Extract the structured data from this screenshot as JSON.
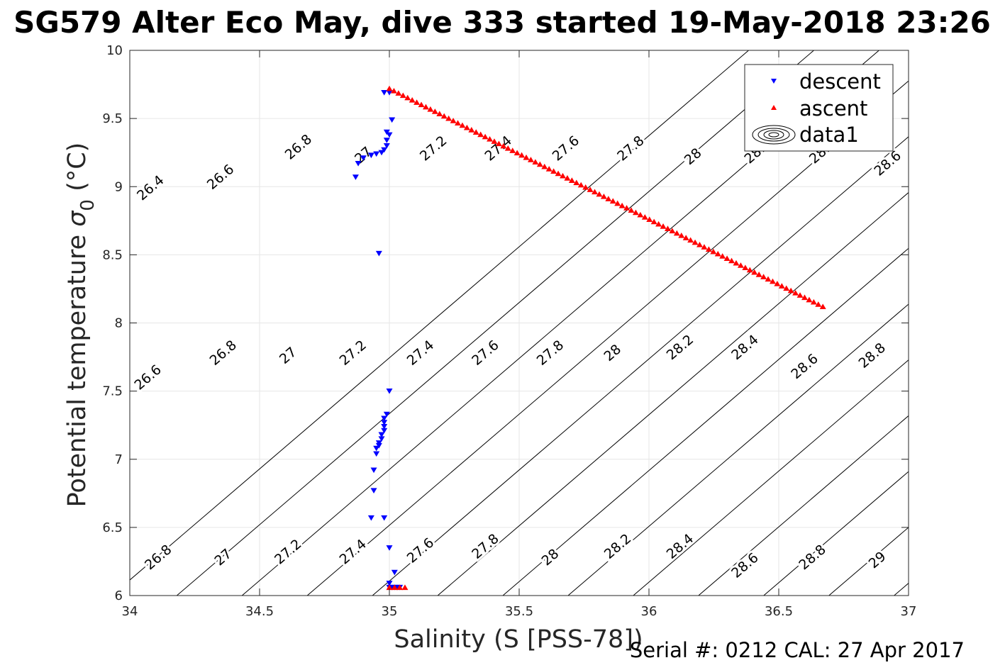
{
  "title": "SG579 Alter Eco May, dive 333 started 19-May-2018 23:26",
  "footer": "Serial #: 0212  CAL: 27 Apr 2017",
  "chart_data": {
    "type": "scatter",
    "xlabel": "Salinity (S [PSS-78])",
    "ylabel_main": "Potential temperature ",
    "ylabel_symbol": "σ",
    "ylabel_sub": "0",
    "ylabel_unit": " (°C)",
    "xlim": [
      34,
      37
    ],
    "ylim": [
      6,
      10
    ],
    "xticks": [
      34,
      34.5,
      35,
      35.5,
      36,
      36.5,
      37
    ],
    "xtick_labels": [
      "34",
      "34.5",
      "35",
      "35.5",
      "36",
      "36.5",
      "37"
    ],
    "yticks": [
      6,
      6.5,
      7,
      7.5,
      8,
      8.5,
      9,
      9.5,
      10
    ],
    "ytick_labels": [
      "6",
      "6.5",
      "7",
      "7.5",
      "8",
      "8.5",
      "9",
      "9.5",
      "10"
    ],
    "grid": true,
    "legend": {
      "location": "top-right",
      "entries": [
        {
          "name": "descent",
          "marker": "triangle-down",
          "color": "#0000ff"
        },
        {
          "name": "ascent",
          "marker": "triangle-up",
          "color": "#ff0000"
        },
        {
          "name": "data1",
          "marker": "contour",
          "color": "#000000"
        }
      ]
    },
    "series": [
      {
        "name": "descent",
        "color": "#0000ff",
        "marker": "triangle-down",
        "x": [
          34.98,
          35.0,
          35.01,
          34.99,
          35.0,
          34.99,
          34.99,
          34.98,
          34.97,
          34.95,
          34.93,
          34.9,
          34.88,
          34.87,
          34.96,
          35.0,
          34.99,
          34.98,
          34.98,
          34.98,
          34.98,
          34.97,
          34.97,
          34.96,
          34.96,
          34.95,
          34.95,
          34.94,
          34.94,
          34.93,
          34.98,
          35.0,
          35.02,
          35.0,
          35.0,
          35.01,
          35.02,
          35.03,
          35.04
        ],
        "y": [
          9.69,
          9.69,
          9.49,
          9.4,
          9.38,
          9.34,
          9.3,
          9.27,
          9.25,
          9.24,
          9.23,
          9.21,
          9.17,
          9.07,
          8.51,
          7.5,
          7.33,
          7.3,
          7.27,
          7.24,
          7.21,
          7.18,
          7.15,
          7.12,
          7.1,
          7.08,
          7.04,
          6.92,
          6.77,
          6.57,
          6.57,
          6.35,
          6.17,
          6.09,
          6.06,
          6.06,
          6.06,
          6.06,
          6.06
        ]
      },
      {
        "name": "ascent",
        "color": "#ff0000",
        "marker": "triangle-up",
        "x": [
          35.0,
          36.67,
          35.0,
          35.02,
          35.04,
          35.06
        ],
        "y": [
          9.72,
          8.12,
          6.06,
          6.06,
          6.06,
          6.06
        ]
      }
    ],
    "contour_levels": [
      26.4,
      26.6,
      26.8,
      27,
      27.2,
      27.4,
      27.6,
      27.8,
      28,
      28.2,
      28.4,
      28.6,
      28.8,
      29
    ],
    "contour_labels": [
      {
        "text": "26.4",
        "x": 34.08,
        "y": 8.99
      },
      {
        "text": "26.6",
        "x": 34.35,
        "y": 9.07
      },
      {
        "text": "26.8",
        "x": 34.65,
        "y": 9.29
      },
      {
        "text": "27",
        "x": 34.9,
        "y": 9.23
      },
      {
        "text": "27.2",
        "x": 35.17,
        "y": 9.28
      },
      {
        "text": "27.4",
        "x": 35.42,
        "y": 9.28
      },
      {
        "text": "27.6",
        "x": 35.68,
        "y": 9.28
      },
      {
        "text": "27.8",
        "x": 35.93,
        "y": 9.28
      },
      {
        "text": "28",
        "x": 36.17,
        "y": 9.22
      },
      {
        "text": "28.2",
        "x": 36.42,
        "y": 9.26
      },
      {
        "text": "28.4",
        "x": 36.67,
        "y": 9.26
      },
      {
        "text": "28.6",
        "x": 36.92,
        "y": 9.17
      },
      {
        "text": "26.6",
        "x": 34.07,
        "y": 7.6
      },
      {
        "text": "26.8",
        "x": 34.36,
        "y": 7.78
      },
      {
        "text": "27",
        "x": 34.61,
        "y": 7.76
      },
      {
        "text": "27.2",
        "x": 34.86,
        "y": 7.78
      },
      {
        "text": "27.4",
        "x": 35.12,
        "y": 7.78
      },
      {
        "text": "27.6",
        "x": 35.37,
        "y": 7.78
      },
      {
        "text": "27.8",
        "x": 35.62,
        "y": 7.78
      },
      {
        "text": "28",
        "x": 35.86,
        "y": 7.78
      },
      {
        "text": "28.2",
        "x": 36.12,
        "y": 7.82
      },
      {
        "text": "28.4",
        "x": 36.37,
        "y": 7.82
      },
      {
        "text": "28.6",
        "x": 36.6,
        "y": 7.68
      },
      {
        "text": "28.8",
        "x": 36.86,
        "y": 7.76
      },
      {
        "text": "26.8",
        "x": 34.11,
        "y": 6.28
      },
      {
        "text": "27",
        "x": 34.36,
        "y": 6.28
      },
      {
        "text": "27.2",
        "x": 34.61,
        "y": 6.32
      },
      {
        "text": "27.4",
        "x": 34.86,
        "y": 6.32
      },
      {
        "text": "27.6",
        "x": 35.12,
        "y": 6.33
      },
      {
        "text": "27.8",
        "x": 35.37,
        "y": 6.36
      },
      {
        "text": "28",
        "x": 35.62,
        "y": 6.28
      },
      {
        "text": "28.2",
        "x": 35.88,
        "y": 6.36
      },
      {
        "text": "28.4",
        "x": 36.12,
        "y": 6.36
      },
      {
        "text": "28.6",
        "x": 36.37,
        "y": 6.22
      },
      {
        "text": "28.8",
        "x": 36.63,
        "y": 6.28
      },
      {
        "text": "29",
        "x": 36.88,
        "y": 6.26
      }
    ]
  }
}
